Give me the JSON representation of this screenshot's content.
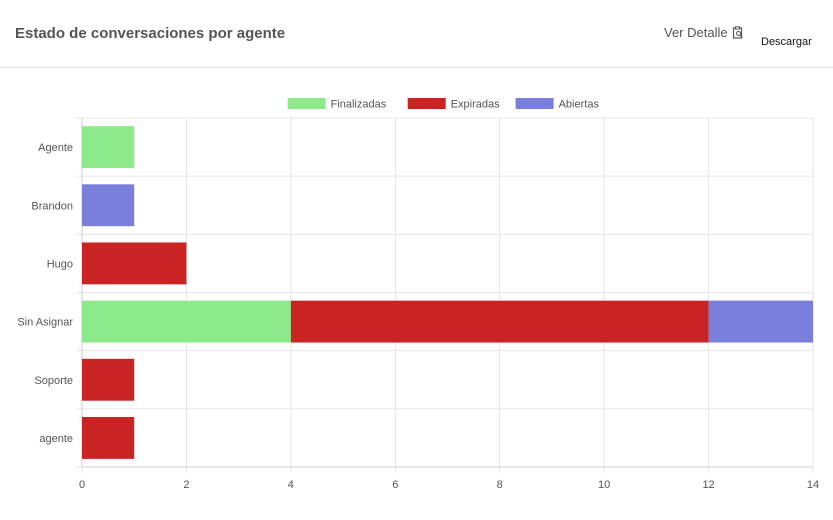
{
  "header": {
    "title": "Estado de conversaciones por agente",
    "detail_label": "Ver Detalle",
    "detail_icon": "clipboard-search-icon",
    "download_label": "Descargar"
  },
  "chart_data": {
    "type": "bar",
    "orientation": "horizontal",
    "stacked": true,
    "categories": [
      "Agente",
      "Brandon",
      "Hugo",
      "Sin Asignar",
      "Soporte",
      "agente"
    ],
    "series": [
      {
        "name": "Finalizadas",
        "color": "#8dea8a",
        "values": [
          1,
          0,
          0,
          4,
          0,
          0
        ]
      },
      {
        "name": "Expiradas",
        "color": "#c92424",
        "values": [
          0,
          0,
          2,
          8,
          1,
          1
        ]
      },
      {
        "name": "Abiertas",
        "color": "#7b7fdc",
        "values": [
          0,
          1,
          0,
          2,
          0,
          0
        ]
      }
    ],
    "xlim": [
      0,
      14
    ],
    "xticks": [
      0,
      2,
      4,
      6,
      8,
      10,
      12,
      14
    ],
    "grid": true,
    "legend_position": "top"
  }
}
